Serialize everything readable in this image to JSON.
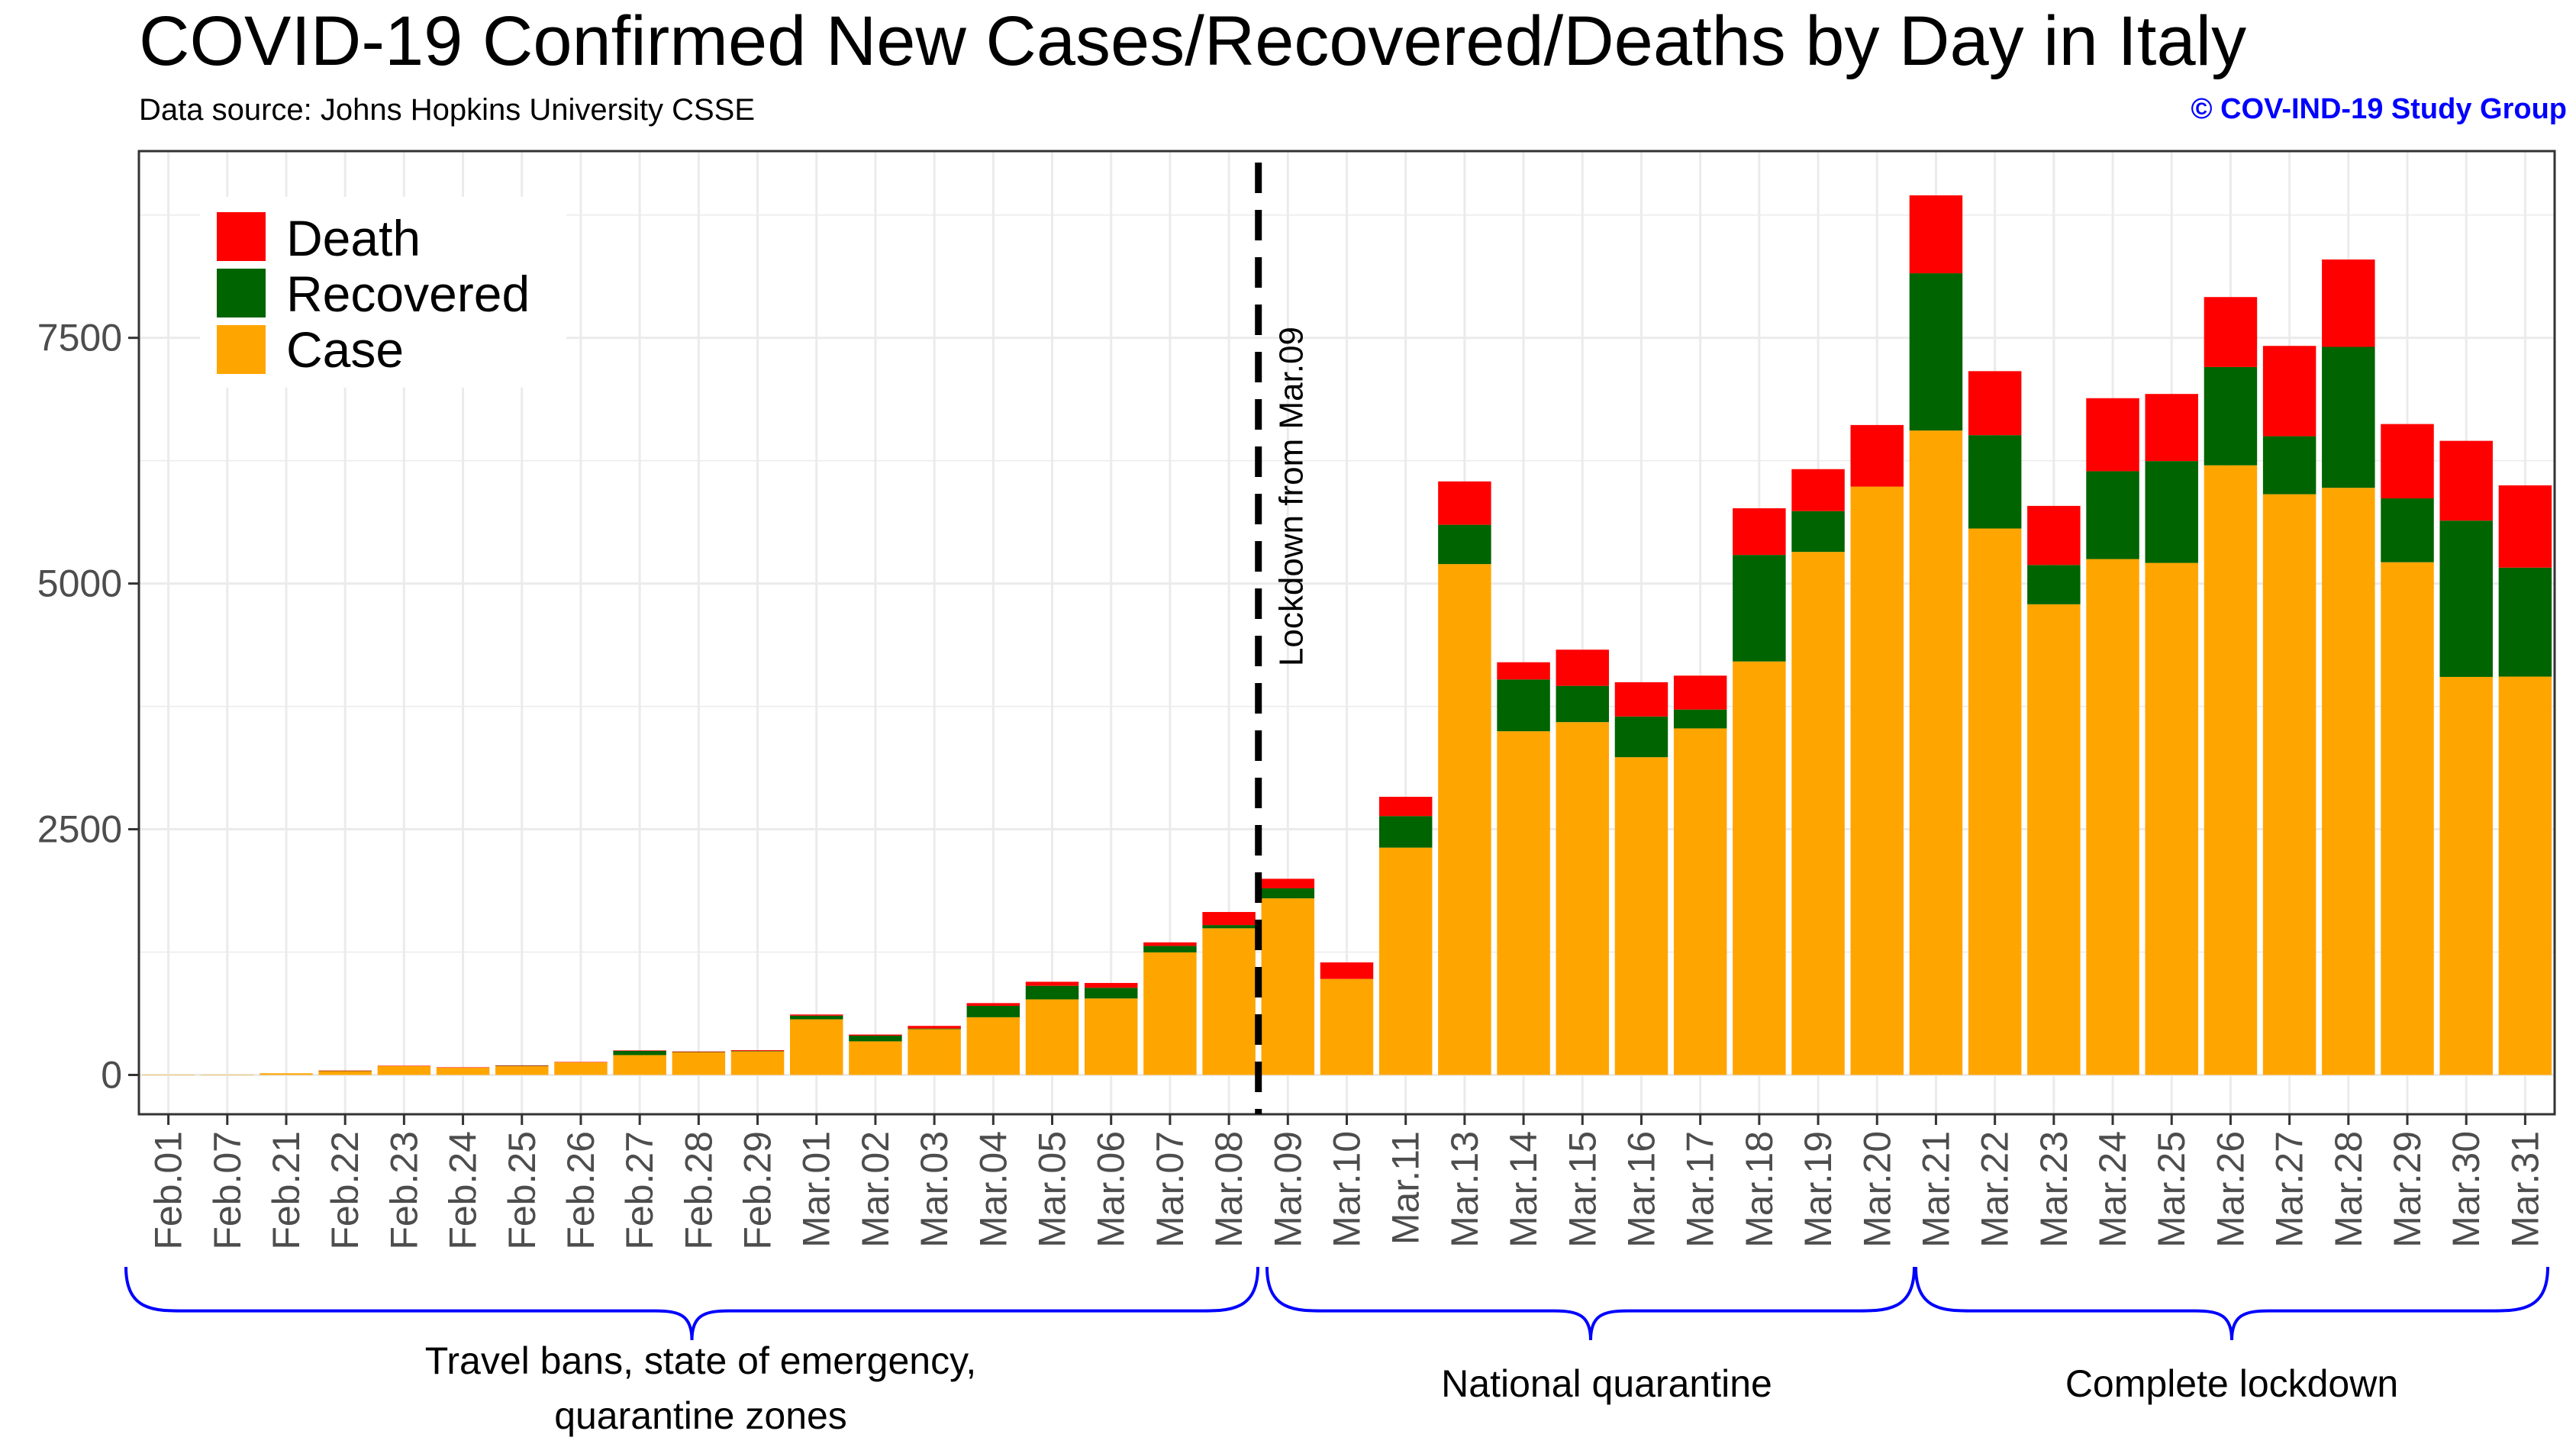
{
  "title": "COVID-19 Confirmed New Cases/Recovered/Deaths by Day in Italy",
  "subtitle": "Data source: Johns Hopkins University CSSE",
  "credit": "© COV-IND-19 Study Group",
  "colors": {
    "case": "#FFA500",
    "recovered": "#006400",
    "death": "#FF0000",
    "credit": "#0000FF",
    "brace": "#0000FF"
  },
  "chart_data": {
    "type": "bar",
    "stacked": true,
    "title": "COVID-19 Confirmed New Cases/Recovered/Deaths by Day in Italy",
    "xlabel": "",
    "ylabel": "",
    "ylim": [
      -400,
      9400
    ],
    "yticks": [
      0,
      2500,
      5000,
      7500
    ],
    "ytick_labels": [
      "0",
      "2500",
      "5000",
      "7500"
    ],
    "legend_position": "top-left",
    "categories": [
      "Feb.01",
      "Feb.07",
      "Feb.21",
      "Feb.22",
      "Feb.23",
      "Feb.24",
      "Feb.25",
      "Feb.26",
      "Feb.27",
      "Feb.28",
      "Feb.29",
      "Mar.01",
      "Mar.02",
      "Mar.03",
      "Mar.04",
      "Mar.05",
      "Mar.06",
      "Mar.07",
      "Mar.08",
      "Mar.09",
      "Mar.10",
      "Mar.11",
      "Mar.13",
      "Mar.14",
      "Mar.15",
      "Mar.16",
      "Mar.17",
      "Mar.18",
      "Mar.19",
      "Mar.20",
      "Mar.21",
      "Mar.22",
      "Mar.23",
      "Mar.24",
      "Mar.25",
      "Mar.26",
      "Mar.27",
      "Mar.28",
      "Mar.29",
      "Mar.30",
      "Mar.31"
    ],
    "series": [
      {
        "name": "Case",
        "values": [
          2,
          1,
          17,
          42,
          93,
          74,
          93,
          131,
          202,
          233,
          240,
          566,
          342,
          466,
          587,
          769,
          778,
          1247,
          1492,
          1797,
          977,
          2313,
          5198,
          3497,
          3590,
          3233,
          3526,
          4207,
          5322,
          5986,
          6557,
          5560,
          4789,
          5249,
          5210,
          6203,
          5909,
          5974,
          5217,
          4050,
          4053
        ]
      },
      {
        "name": "Recovered",
        "values": [
          0,
          0,
          0,
          1,
          0,
          0,
          1,
          0,
          43,
          1,
          4,
          37,
          58,
          6,
          116,
          138,
          109,
          66,
          33,
          102,
          0,
          321,
          400,
          527,
          369,
          414,
          192,
          1084,
          415,
          0,
          1600,
          950,
          400,
          894,
          1036,
          1000,
          590,
          1434,
          650,
          1590,
          1109
        ]
      },
      {
        "name": "Death",
        "values": [
          0,
          0,
          0,
          2,
          1,
          4,
          4,
          1,
          5,
          5,
          8,
          12,
          11,
          27,
          28,
          41,
          49,
          36,
          133,
          97,
          168,
          196,
          441,
          175,
          368,
          349,
          345,
          475,
          427,
          627,
          793,
          651,
          601,
          743,
          683,
          712,
          919,
          889,
          756,
          812,
          837
        ]
      }
    ],
    "annotations": [
      {
        "type": "vline",
        "between": [
          "Mar.08",
          "Mar.09"
        ],
        "label": "Lockdown from Mar.09",
        "style": "dashed"
      }
    ],
    "periods": [
      {
        "label": "Travel bans, state of emergency, quarantine zones",
        "from": "Feb.01",
        "to": "Mar.08"
      },
      {
        "label": "National quarantine",
        "from": "Mar.09",
        "to": "Mar.20"
      },
      {
        "label": "Complete lockdown",
        "from": "Mar.21",
        "to": "Mar.31"
      }
    ]
  },
  "legend": [
    {
      "label": "Death",
      "color_key": "death"
    },
    {
      "label": "Recovered",
      "color_key": "recovered"
    },
    {
      "label": "Case",
      "color_key": "case"
    }
  ],
  "period_labels": {
    "travel_line1": "Travel bans, state of emergency,",
    "travel_line2": "quarantine zones",
    "national": "National quarantine",
    "complete": "Complete lockdown"
  }
}
